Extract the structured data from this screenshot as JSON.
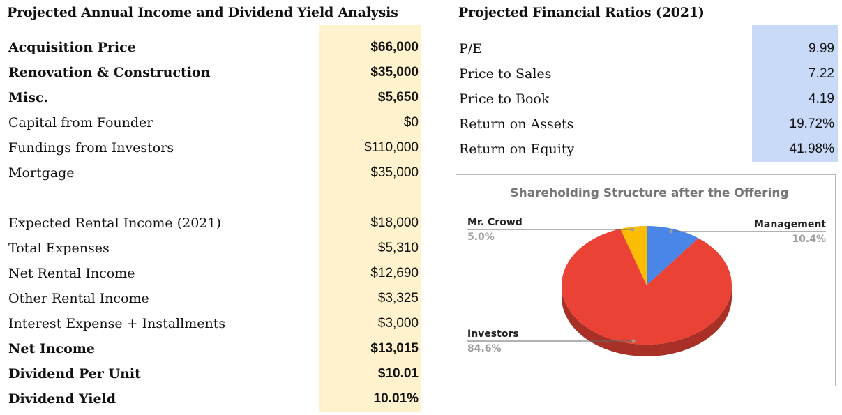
{
  "income": {
    "title": "Projected Annual Income and Dividend Yield Analysis",
    "rows": [
      {
        "label": "Acquisition Price",
        "value": "$66,000",
        "bold": true
      },
      {
        "label": "Renovation & Construction",
        "value": "$35,000",
        "bold": true
      },
      {
        "label": "Misc.",
        "value": "$5,650",
        "bold": true
      },
      {
        "label": "Capital from Founder",
        "value": "$0",
        "bold": false
      },
      {
        "label": "Fundings from Investors",
        "value": "$110,000",
        "bold": false
      },
      {
        "label": "Mortgage",
        "value": "$35,000",
        "bold": false
      },
      {
        "label": "",
        "value": "",
        "bold": false
      },
      {
        "label": "Expected Rental Income (2021)",
        "value": "$18,000",
        "bold": false
      },
      {
        "label": "Total Expenses",
        "value": "$5,310",
        "bold": false
      },
      {
        "label": "Net Rental Income",
        "value": "$12,690",
        "bold": false
      },
      {
        "label": "Other Rental Income",
        "value": "$3,325",
        "bold": false
      },
      {
        "label": "Interest Expense + Installments",
        "value": "$3,000",
        "bold": false
      },
      {
        "label": "Net Income",
        "value": "$13,015",
        "bold": true
      },
      {
        "label": "Dividend Per Unit",
        "value": "$10.01",
        "bold": true
      },
      {
        "label": "Dividend Yield",
        "value": "10.01%",
        "bold": true
      }
    ]
  },
  "ratios": {
    "title": "Projected Financial Ratios (2021)",
    "rows": [
      {
        "label": "P/E",
        "value": "9.99"
      },
      {
        "label": "Price to Sales",
        "value": "7.22"
      },
      {
        "label": "Price to Book",
        "value": "4.19"
      },
      {
        "label": "Return on Assets",
        "value": "19.72%"
      },
      {
        "label": "Return on Equity",
        "value": "41.98%"
      }
    ]
  },
  "chart_data": {
    "type": "pie",
    "title": "Shareholding Structure after the Offering",
    "slices": [
      {
        "name": "Management",
        "value": 10.4,
        "label": "10.4%",
        "color": "#4a86e8"
      },
      {
        "name": "Investors",
        "value": 84.6,
        "label": "84.6%",
        "color": "#ea4335"
      },
      {
        "name": "Mr. Crowd",
        "value": 5.0,
        "label": "5.0%",
        "color": "#fbbc04"
      }
    ],
    "style": "3d"
  }
}
